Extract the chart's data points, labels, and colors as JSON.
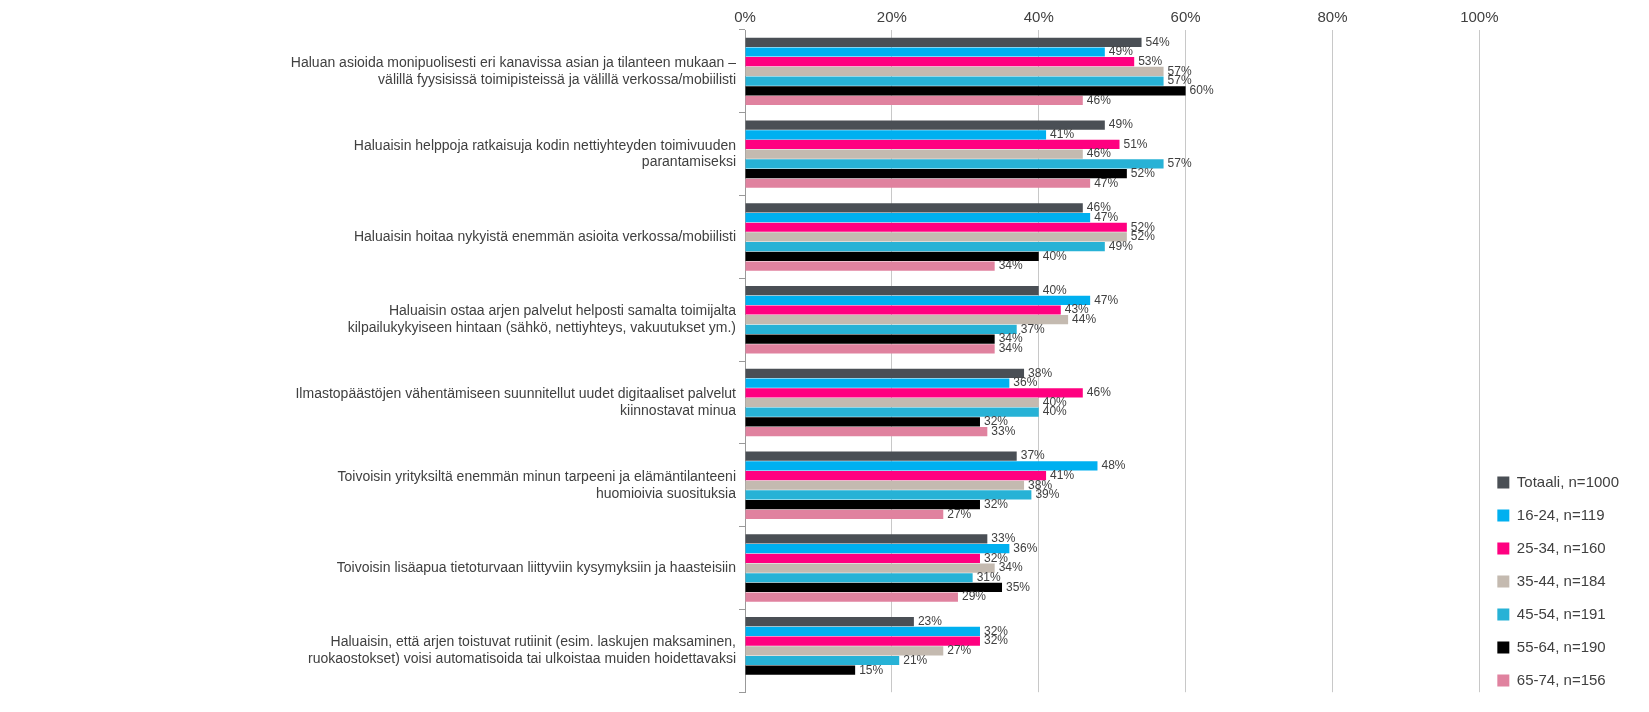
{
  "chart_data": {
    "type": "bar",
    "orientation": "horizontal",
    "categories": [
      "Haluan asioida monipuolisesti eri kanavissa asian ja tilanteen mukaan – välillä fyysisissä toimipisteissä ja välillä verkossa/mobiilisti",
      "Haluaisin helppoja ratkaisuja kodin nettiyhteyden toimivuuden parantamiseksi",
      "Haluaisin hoitaa nykyistä enemmän asioita verkossa/mobiilisti",
      "Haluaisin ostaa arjen palvelut helposti samalta toimijalta kilpailukykyiseen hintaan (sähkö, nettiyhteys, vakuutukset ym.)",
      "Ilmastopäästöjen vähentämiseen suunnitellut uudet digitaaliset palvelut kiinnostavat minua",
      "Toivoisin yrityksiltä enemmän minun tarpeeni ja elämäntilanteeni huomioivia suosituksia",
      "Toivoisin lisäapua tietoturvaan liittyviin kysymyksiin ja haasteisiin",
      "Haluaisin, että arjen toistuvat rutiinit (esim. laskujen maksaminen, ruokaostokset) voisi automatisoida tai ulkoistaa muiden hoidettavaksi"
    ],
    "series": [
      {
        "name": "Totaali, n=1000",
        "color": "#4a4f55",
        "values": [
          54,
          49,
          46,
          40,
          38,
          37,
          33,
          23
        ],
        "value_labels": [
          "54%",
          "49%",
          "46%",
          "40%",
          "38%",
          "37%",
          "33%",
          "23%"
        ]
      },
      {
        "name": "16-24, n=119",
        "color": "#00b0f0",
        "values": [
          49,
          41,
          47,
          47,
          36,
          48,
          36,
          32
        ],
        "value_labels": [
          "49%",
          "41%",
          "47%",
          "47%",
          "36%",
          "48%",
          "36%",
          "32%"
        ]
      },
      {
        "name": "25-34, n=160",
        "color": "#ff0080",
        "values": [
          53,
          51,
          52,
          43,
          46,
          41,
          32,
          32
        ],
        "value_labels": [
          "53%",
          "51%",
          "52%",
          "43%",
          "46%",
          "41%",
          "32%",
          "32%"
        ]
      },
      {
        "name": "35-44, n=184",
        "color": "#c4bab0",
        "values": [
          57,
          46,
          52,
          44,
          40,
          38,
          34,
          27
        ],
        "value_labels": [
          "57%",
          "46%",
          "52%",
          "44%",
          "40%",
          "38%",
          "34%",
          "27%"
        ]
      },
      {
        "name": "45-54, n=191",
        "color": "#27b2d6",
        "values": [
          57,
          57,
          49,
          37,
          40,
          39,
          31,
          21
        ],
        "value_labels": [
          "57%",
          "57%",
          "49%",
          "37%",
          "40%",
          "39%",
          "31%",
          "21%"
        ]
      },
      {
        "name": "55-64, n=190",
        "color": "#000000",
        "values": [
          60,
          52,
          40,
          34,
          32,
          32,
          35,
          15
        ],
        "value_labels": [
          "60%",
          "52%",
          "40%",
          "34%",
          "32%",
          "32%",
          "35%",
          "15%"
        ]
      },
      {
        "name": "65-74, n=156",
        "color": "#e0829f",
        "values": [
          46,
          47,
          34,
          34,
          33,
          27,
          29,
          null
        ],
        "value_labels": [
          "46%",
          "47%",
          "34%",
          "34%",
          "33%",
          "27%",
          "29%",
          null
        ]
      }
    ],
    "xlim": [
      0,
      100
    ],
    "xticks": [
      {
        "value": 0,
        "label": "0%"
      },
      {
        "value": 20,
        "label": "20%"
      },
      {
        "value": 40,
        "label": "40%"
      },
      {
        "value": 60,
        "label": "60%"
      },
      {
        "value": 80,
        "label": "80%"
      },
      {
        "value": 100,
        "label": "100%"
      }
    ],
    "grid": "x",
    "legend": "right"
  }
}
